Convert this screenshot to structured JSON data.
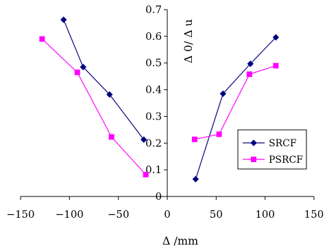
{
  "chart_data": {
    "type": "line",
    "xlabel": "Δ /mm",
    "ylabel": "Δ 0/ Δ u",
    "xlim": [
      -150,
      150
    ],
    "ylim": [
      0,
      0.7
    ],
    "x_ticks": [
      "−150",
      "−100",
      "−50",
      "0",
      "50",
      "100",
      "150"
    ],
    "y_ticks": [
      "0",
      "0.1",
      "0.2",
      "0.3",
      "0.4",
      "0.5",
      "0.6",
      "0.7"
    ],
    "legend_position": "right",
    "series": [
      {
        "name": "SRCF",
        "color": "#000080",
        "marker": "diamond",
        "segments": [
          [
            [
              -106,
              0.662
            ],
            [
              -86,
              0.485
            ],
            [
              -59,
              0.382
            ],
            [
              -24,
              0.213
            ]
          ],
          [
            [
              29,
              0.065
            ],
            [
              57,
              0.385
            ],
            [
              85,
              0.497
            ],
            [
              111,
              0.596
            ]
          ]
        ]
      },
      {
        "name": "PSRCF",
        "color": "#ff00ff",
        "marker": "square",
        "segments": [
          [
            [
              -128,
              0.59
            ],
            [
              -92,
              0.465
            ],
            [
              -57,
              0.223
            ],
            [
              -22,
              0.082
            ]
          ],
          [
            [
              28,
              0.214
            ],
            [
              53,
              0.233
            ],
            [
              84,
              0.458
            ],
            [
              111,
              0.49
            ]
          ]
        ]
      }
    ]
  }
}
